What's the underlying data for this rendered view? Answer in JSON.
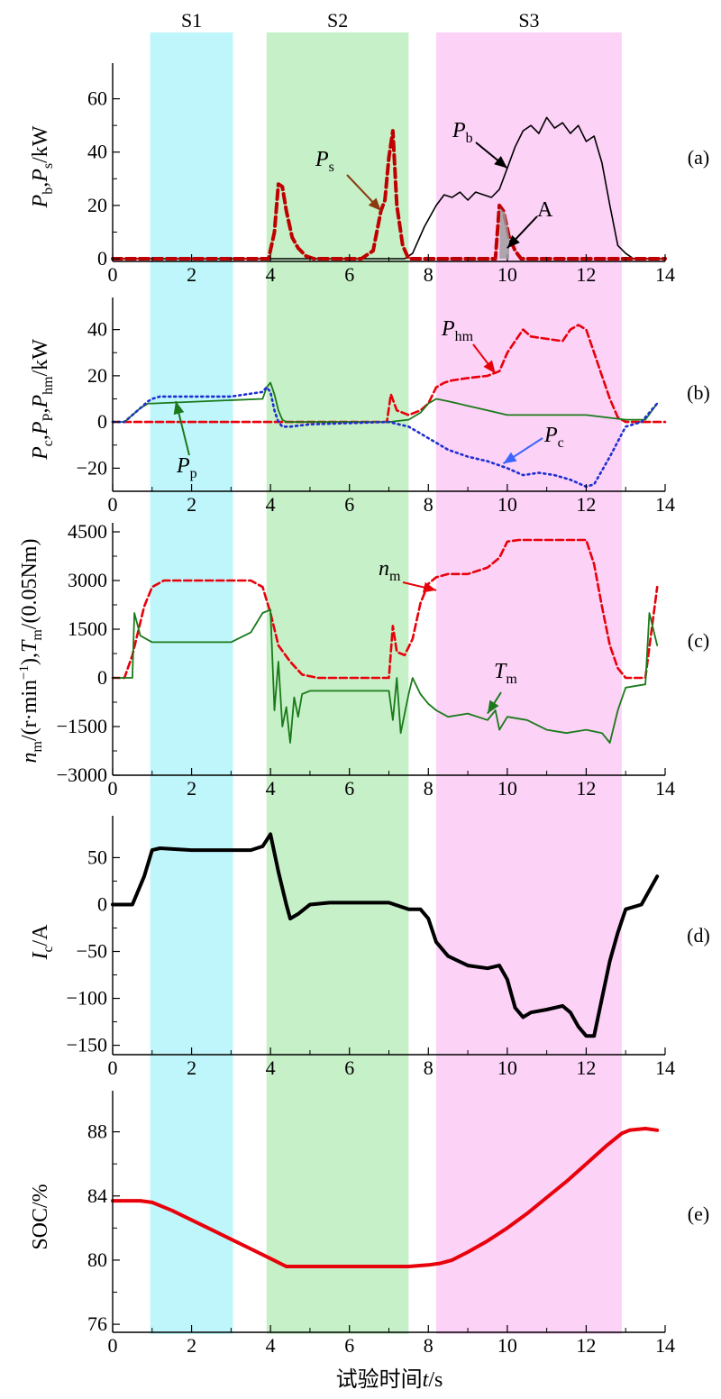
{
  "figure": {
    "stages": [
      {
        "label": "S1",
        "t0": 0.95,
        "t1": 3.05,
        "color": "#bff6fb"
      },
      {
        "label": "S2",
        "t0": 3.9,
        "t1": 7.5,
        "color": "#c6f0c7"
      },
      {
        "label": "S3",
        "t0": 8.2,
        "t1": 12.9,
        "color": "#fcd2f7"
      }
    ],
    "x_axis_title": "试验时间t/s",
    "x_ticks": [
      0,
      2,
      4,
      6,
      8,
      10,
      12,
      14
    ],
    "colors": {
      "black": "#000000",
      "red": "#e8000b",
      "darkred": "#c00000",
      "green": "#1a7a1a",
      "blue": "#1f2fd1"
    }
  },
  "chart_data": [
    {
      "type": "line",
      "panel_label": "(a)",
      "ylabel": "Pb,Ps/kW",
      "xlim": [
        0,
        14
      ],
      "ylim": [
        -1,
        70
      ],
      "y_ticks": [
        0,
        20,
        40,
        60
      ],
      "series": [
        {
          "name": "Pb",
          "style": "black-solid",
          "x": [
            0,
            7.4,
            7.6,
            7.9,
            8.2,
            8.4,
            8.6,
            8.8,
            9.0,
            9.2,
            9.4,
            9.6,
            9.8,
            10.0,
            10.2,
            10.4,
            10.6,
            10.8,
            11.0,
            11.2,
            11.4,
            11.6,
            11.8,
            12.0,
            12.2,
            12.4,
            12.6,
            12.8,
            13.0,
            13.2,
            14
          ],
          "y": [
            0,
            0,
            2,
            12,
            20,
            24,
            23,
            25,
            22,
            25,
            24,
            23,
            26,
            34,
            42,
            48,
            50,
            47,
            53,
            49,
            51,
            47,
            50,
            44,
            46,
            36,
            20,
            5,
            2,
            0,
            0
          ]
        },
        {
          "name": "Ps",
          "style": "darkred-dashed",
          "x": [
            0,
            3.95,
            4.1,
            4.2,
            4.3,
            4.4,
            4.55,
            4.7,
            4.9,
            5.1,
            6.3,
            6.6,
            6.8,
            6.9,
            7.0,
            7.1,
            7.2,
            7.35,
            7.5,
            9.7,
            9.8,
            9.9,
            10.05,
            10.2,
            10.35,
            14
          ],
          "y": [
            0,
            0,
            10,
            28,
            27,
            18,
            8,
            4,
            1,
            0,
            0,
            3,
            18,
            22,
            38,
            48,
            20,
            5,
            0,
            0,
            20,
            18,
            8,
            3,
            0,
            0
          ]
        }
      ],
      "annotations": [
        {
          "text": "Pb",
          "target": "Pb"
        },
        {
          "text": "Ps",
          "target": "Ps"
        },
        {
          "text": "A",
          "target": "shaded area"
        }
      ]
    },
    {
      "type": "line",
      "panel_label": "(b)",
      "ylabel": "Pc,PP,Phm/kW",
      "xlim": [
        0,
        14
      ],
      "ylim": [
        -30,
        50
      ],
      "y_ticks": [
        -20,
        0,
        20,
        40
      ],
      "series": [
        {
          "name": "Phm",
          "style": "red-dashed",
          "x": [
            0,
            6.95,
            7.05,
            7.2,
            7.5,
            7.8,
            8.0,
            8.2,
            8.4,
            8.6,
            9.0,
            9.5,
            9.8,
            10.0,
            10.2,
            10.4,
            10.6,
            11.0,
            11.4,
            11.6,
            11.8,
            12.0,
            12.2,
            12.4,
            12.6,
            12.8,
            13.0,
            14
          ],
          "y": [
            0,
            0,
            12,
            5,
            3,
            5,
            8,
            15,
            17,
            18,
            19,
            20,
            22,
            30,
            35,
            40,
            37,
            36,
            35,
            40,
            42,
            40,
            30,
            20,
            10,
            2,
            0,
            0
          ]
        },
        {
          "name": "Pp",
          "style": "green-solid",
          "x": [
            0,
            0.3,
            0.5,
            0.7,
            0.9,
            1.0,
            3.8,
            3.9,
            4.0,
            4.1,
            4.2,
            4.3,
            4.4,
            7.0,
            7.5,
            7.8,
            8.0,
            8.2,
            8.5,
            9.0,
            9.5,
            10.0,
            12.0,
            13.0,
            13.5,
            13.8
          ],
          "y": [
            0,
            0,
            3,
            6,
            8,
            8,
            10,
            15,
            17,
            12,
            5,
            1,
            0,
            0,
            1,
            4,
            8,
            10,
            9,
            7,
            5,
            3,
            3,
            1,
            1,
            8
          ]
        },
        {
          "name": "Pc",
          "style": "blue-dotted",
          "x": [
            0,
            0.3,
            0.5,
            0.7,
            0.9,
            1.0,
            1.2,
            3.0,
            3.8,
            3.9,
            4.0,
            4.1,
            4.2,
            4.3,
            4.5,
            5.0,
            7.0,
            7.5,
            7.8,
            8.0,
            8.2,
            8.5,
            9.0,
            9.5,
            10.0,
            10.4,
            10.8,
            11.2,
            11.6,
            12.0,
            12.2,
            12.6,
            13.0,
            13.4,
            13.8
          ],
          "y": [
            0,
            0,
            3,
            6,
            9,
            10,
            11,
            11,
            13,
            15,
            13,
            5,
            0,
            -2,
            -2,
            -1,
            0,
            -2,
            -5,
            -7,
            -9,
            -12,
            -15,
            -17,
            -20,
            -23,
            -22,
            -23,
            -25,
            -28,
            -27,
            -15,
            -2,
            0,
            8
          ]
        }
      ],
      "annotations": [
        {
          "text": "Phm",
          "target": "Phm"
        },
        {
          "text": "Pc",
          "target": "Pc"
        },
        {
          "text": "Pp",
          "target": "Pp"
        }
      ]
    },
    {
      "type": "line",
      "panel_label": "(c)",
      "ylabel": "nm/(r·min−1),Tm/(0.05Nm)",
      "xlim": [
        0,
        14
      ],
      "ylim": [
        -3000,
        4500
      ],
      "y_ticks": [
        -3000,
        -1500,
        0,
        1500,
        3000,
        4500
      ],
      "series": [
        {
          "name": "nm",
          "style": "red-dashed",
          "x": [
            0,
            0.3,
            0.5,
            0.8,
            1.0,
            1.3,
            3.5,
            3.8,
            4.0,
            4.2,
            4.5,
            4.8,
            5.2,
            7.0,
            7.1,
            7.2,
            7.4,
            7.6,
            7.8,
            8.0,
            8.2,
            8.5,
            9.0,
            9.5,
            9.8,
            10.0,
            10.3,
            12.0,
            12.2,
            12.4,
            12.6,
            12.8,
            13.0,
            13.5,
            13.8
          ],
          "y": [
            0,
            0,
            700,
            2200,
            2800,
            3000,
            3000,
            2800,
            2000,
            1000,
            500,
            100,
            0,
            0,
            1600,
            800,
            700,
            1200,
            2300,
            2900,
            3100,
            3200,
            3200,
            3400,
            3700,
            4200,
            4250,
            4250,
            3500,
            2200,
            1000,
            300,
            0,
            0,
            2800
          ]
        },
        {
          "name": "Tm",
          "style": "green-solid",
          "x": [
            0,
            0.5,
            0.55,
            0.7,
            1.0,
            3.0,
            3.5,
            3.8,
            4.0,
            4.1,
            4.2,
            4.3,
            4.4,
            4.5,
            4.6,
            4.7,
            4.8,
            5.0,
            7.0,
            7.1,
            7.2,
            7.3,
            7.5,
            7.6,
            7.8,
            8.0,
            8.2,
            8.5,
            9.0,
            9.5,
            9.7,
            9.8,
            10.0,
            10.5,
            11.0,
            11.5,
            12.0,
            12.4,
            12.6,
            12.8,
            13.0,
            13.5,
            13.6,
            13.8
          ],
          "y": [
            0,
            0,
            2000,
            1300,
            1100,
            1100,
            1400,
            2000,
            2100,
            -1000,
            500,
            -1500,
            -900,
            -2000,
            -600,
            -1200,
            -500,
            -400,
            -400,
            -1300,
            0,
            -1700,
            -500,
            0,
            -500,
            -800,
            -1000,
            -1200,
            -1100,
            -1300,
            -1000,
            -1600,
            -1200,
            -1300,
            -1600,
            -1700,
            -1600,
            -1700,
            -2000,
            -1000,
            -300,
            -200,
            2000,
            1000
          ]
        }
      ],
      "annotations": [
        {
          "text": "nm",
          "target": "nm"
        },
        {
          "text": "Tm",
          "target": "Tm"
        }
      ]
    },
    {
      "type": "line",
      "panel_label": "(d)",
      "ylabel": "Ic/A",
      "xlim": [
        0,
        14
      ],
      "ylim": [
        -160,
        85
      ],
      "y_ticks": [
        -150,
        -100,
        -50,
        0,
        50
      ],
      "series": [
        {
          "name": "Ic",
          "style": "black-thick",
          "x": [
            0,
            0.5,
            0.8,
            1.0,
            1.2,
            2.0,
            3.5,
            3.8,
            4.0,
            4.2,
            4.4,
            4.5,
            4.7,
            5.0,
            5.5,
            7.0,
            7.5,
            7.8,
            8.0,
            8.2,
            8.5,
            9.0,
            9.5,
            9.8,
            10.0,
            10.2,
            10.4,
            10.6,
            11.0,
            11.4,
            11.6,
            11.8,
            12.0,
            12.2,
            12.4,
            12.6,
            12.8,
            13.0,
            13.4,
            13.8
          ],
          "y": [
            0,
            0,
            30,
            58,
            60,
            58,
            58,
            62,
            75,
            35,
            0,
            -15,
            -10,
            0,
            2,
            2,
            -5,
            -5,
            -15,
            -40,
            -55,
            -65,
            -68,
            -65,
            -80,
            -110,
            -120,
            -115,
            -112,
            -108,
            -115,
            -130,
            -140,
            -140,
            -100,
            -60,
            -30,
            -5,
            0,
            30
          ]
        }
      ]
    },
    {
      "type": "line",
      "panel_label": "(e)",
      "ylabel": "SOC/%",
      "xlim": [
        0,
        14
      ],
      "ylim": [
        75.5,
        90
      ],
      "y_ticks": [
        76,
        80,
        84,
        88
      ],
      "series": [
        {
          "name": "SOC",
          "style": "red-thick",
          "x": [
            0,
            0.7,
            1.0,
            1.5,
            2.0,
            2.5,
            3.0,
            3.5,
            4.0,
            4.4,
            4.6,
            5.0,
            6.0,
            7.0,
            7.5,
            8.0,
            8.3,
            8.6,
            9.0,
            9.5,
            10.0,
            10.5,
            11.0,
            11.5,
            12.0,
            12.5,
            12.9,
            13.1,
            13.5,
            13.8
          ],
          "y": [
            83.7,
            83.7,
            83.6,
            83.1,
            82.5,
            81.9,
            81.3,
            80.7,
            80.1,
            79.6,
            79.6,
            79.6,
            79.6,
            79.6,
            79.6,
            79.7,
            79.8,
            80.0,
            80.5,
            81.2,
            82.0,
            82.9,
            83.9,
            84.9,
            86.0,
            87.1,
            87.9,
            88.1,
            88.2,
            88.1
          ]
        }
      ]
    }
  ]
}
